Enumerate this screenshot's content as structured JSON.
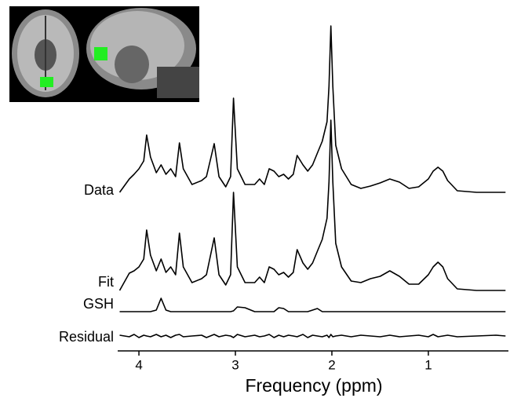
{
  "chart_data": {
    "type": "line",
    "x_label": "Frequency (ppm)",
    "x": [
      4.2,
      4.1,
      4.05,
      4.0,
      3.95,
      3.92,
      3.88,
      3.82,
      3.77,
      3.72,
      3.67,
      3.62,
      3.58,
      3.54,
      3.45,
      3.35,
      3.3,
      3.22,
      3.17,
      3.1,
      3.05,
      3.02,
      2.98,
      2.9,
      2.8,
      2.75,
      2.7,
      2.65,
      2.6,
      2.55,
      2.5,
      2.45,
      2.4,
      2.36,
      2.3,
      2.25,
      2.2,
      2.15,
      2.1,
      2.05,
      2.03,
      2.01,
      1.99,
      1.96,
      1.9,
      1.8,
      1.7,
      1.6,
      1.5,
      1.4,
      1.3,
      1.2,
      1.1,
      1.0,
      0.95,
      0.9,
      0.85,
      0.8,
      0.7,
      0.5,
      0.3,
      0.2
    ],
    "xlim": [
      4.22,
      0.17
    ],
    "xticks": [
      4,
      3,
      2,
      1
    ],
    "ylim": [
      0,
      220
    ],
    "series": [
      {
        "name": "Data",
        "color": "#000000",
        "values": [
          0,
          17,
          23,
          30,
          40,
          73,
          45,
          25,
          35,
          23,
          30,
          20,
          63,
          30,
          10,
          15,
          20,
          62,
          20,
          7,
          20,
          120,
          30,
          10,
          10,
          17,
          10,
          30,
          27,
          20,
          23,
          17,
          23,
          47,
          35,
          27,
          35,
          50,
          65,
          90,
          135,
          212,
          135,
          60,
          30,
          10,
          5,
          8,
          12,
          17,
          13,
          5,
          7,
          17,
          27,
          32,
          27,
          15,
          2,
          0,
          0,
          0
        ]
      },
      {
        "name": "Fit",
        "color": "#000000",
        "values": [
          0,
          22,
          25,
          30,
          40,
          77,
          45,
          25,
          40,
          23,
          30,
          20,
          73,
          30,
          10,
          15,
          20,
          67,
          20,
          7,
          20,
          125,
          30,
          10,
          10,
          17,
          10,
          30,
          27,
          20,
          23,
          17,
          23,
          52,
          35,
          27,
          35,
          50,
          65,
          92,
          138,
          217,
          138,
          60,
          30,
          12,
          10,
          15,
          18,
          25,
          18,
          8,
          8,
          20,
          30,
          36,
          30,
          15,
          2,
          0,
          0,
          0
        ]
      },
      {
        "name": "GSH",
        "color": "#000000",
        "values": [
          0,
          0,
          0,
          0,
          0,
          0,
          0,
          2,
          17,
          2,
          0,
          0,
          0,
          0,
          0,
          0,
          0,
          0,
          0,
          0,
          0,
          1,
          6,
          5,
          0,
          0,
          0,
          0,
          0,
          5,
          4,
          0,
          0,
          0,
          0,
          0,
          2,
          4,
          0,
          0,
          0,
          0,
          0,
          0,
          0,
          0,
          0,
          0,
          0,
          0,
          0,
          0,
          0,
          0,
          0,
          0,
          0,
          0,
          0,
          0,
          0,
          0
        ]
      },
      {
        "name": "Residual",
        "color": "#000000",
        "values": [
          1,
          -1,
          2,
          -2,
          1,
          0,
          -1,
          2,
          -1,
          1,
          -2,
          1,
          2,
          -1,
          0,
          1,
          -2,
          2,
          -1,
          1,
          0,
          -2,
          2,
          -1,
          1,
          -1,
          0,
          2,
          -2,
          1,
          -1,
          1,
          0,
          -1,
          2,
          -2,
          1,
          0,
          -1,
          1,
          -2,
          2,
          -1,
          0,
          1,
          -1,
          1,
          0,
          -1,
          1,
          -1,
          0,
          1,
          -1,
          2,
          -1,
          0,
          1,
          -1,
          0,
          1,
          0
        ]
      }
    ]
  }
}
